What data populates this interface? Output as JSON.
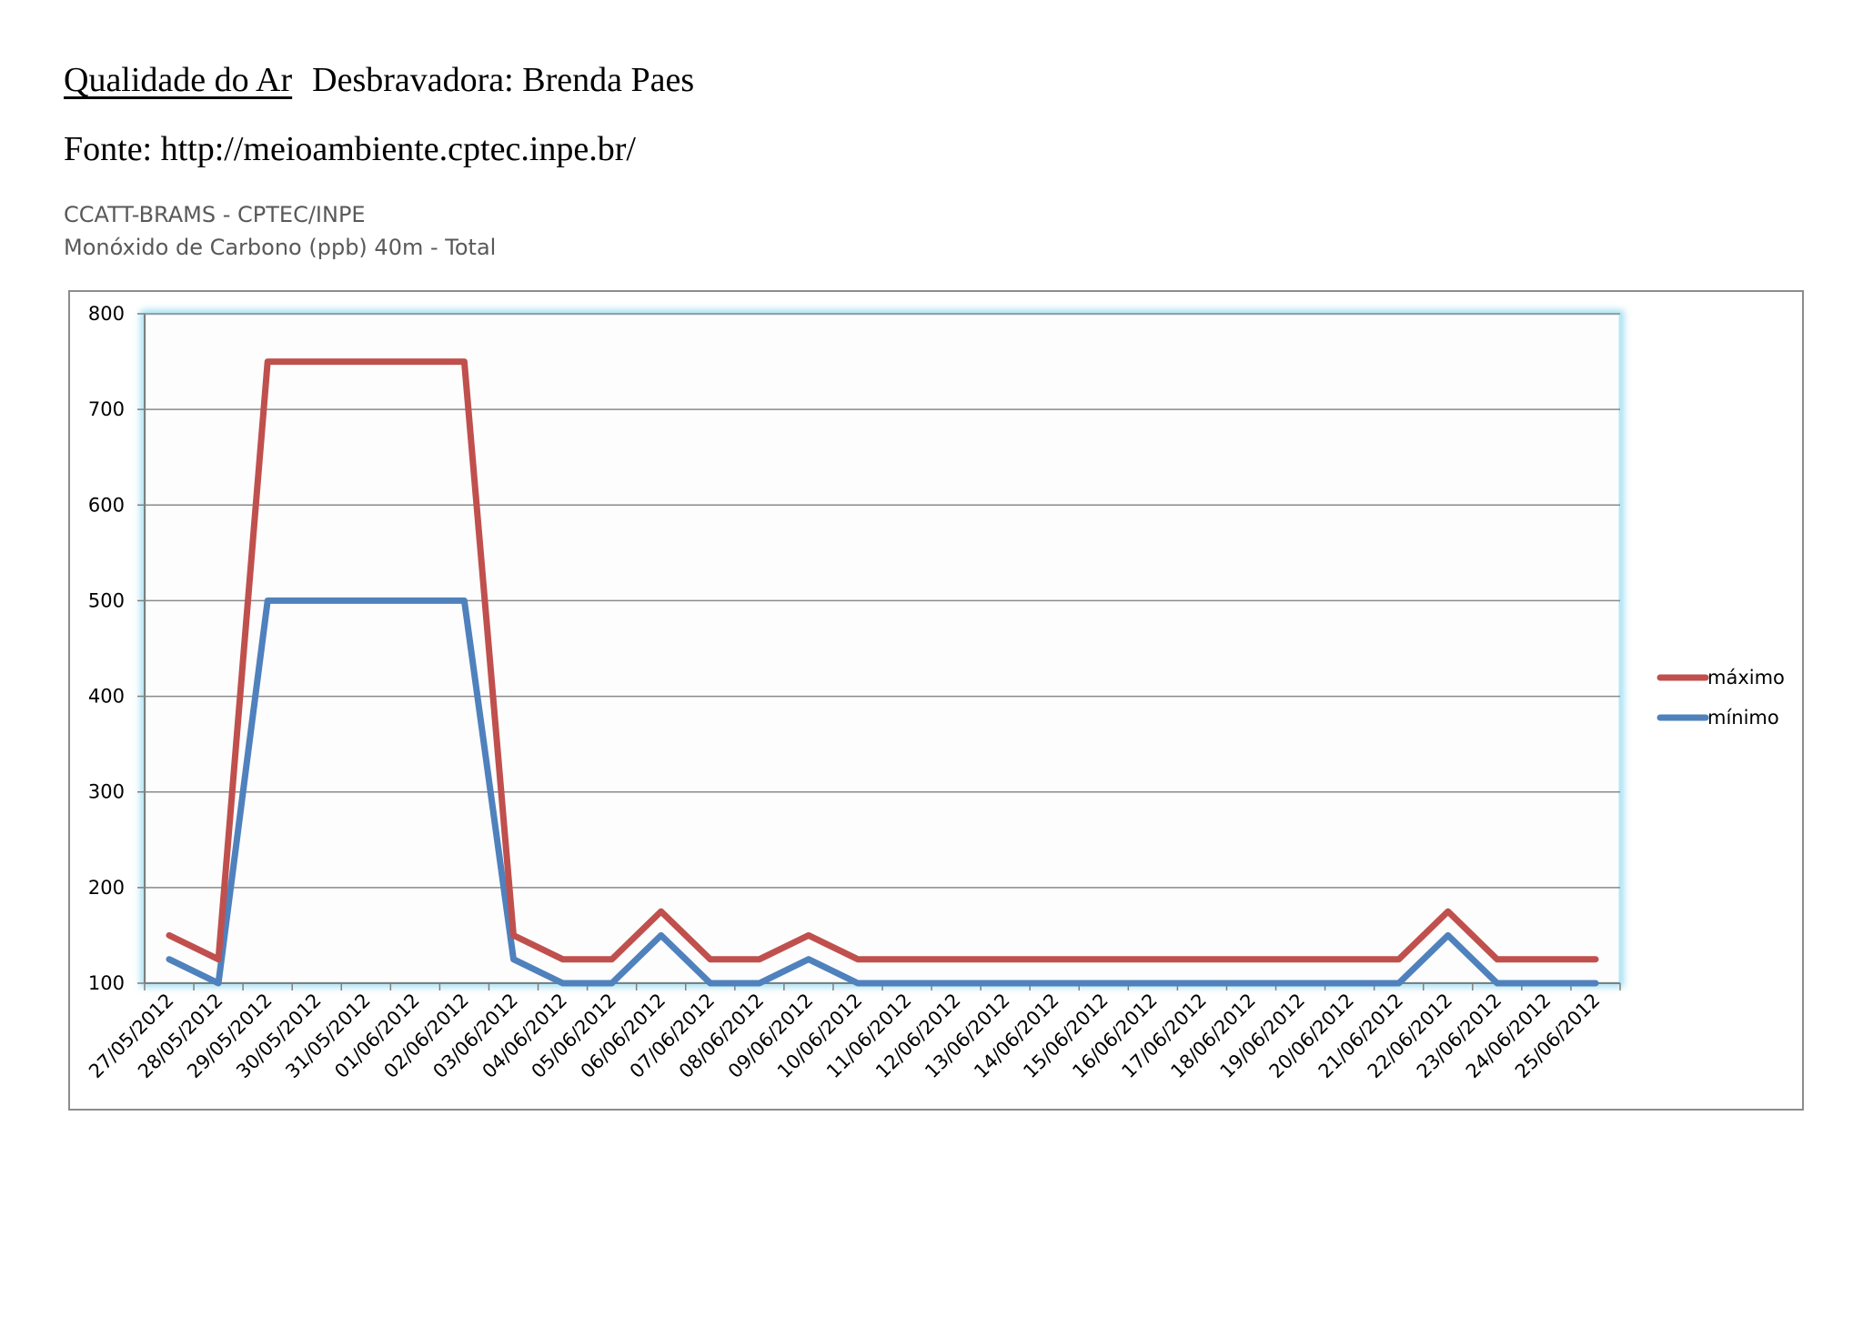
{
  "document": {
    "title": "Qualidade do Ar",
    "author": "Desbravadora: Brenda Paes",
    "source": "Fonte: http://meioambiente.cptec.inpe.br/"
  },
  "chart_caption": {
    "line1": "CCATT-BRAMS - CPTEC/INPE",
    "line2": "Monóxido de Carbono (ppb) 40m - Total"
  },
  "chart_data": {
    "type": "line",
    "title": "",
    "xlabel": "",
    "ylabel": "",
    "ylim": [
      100,
      800
    ],
    "yticks": [
      100,
      200,
      300,
      400,
      500,
      600,
      700,
      800
    ],
    "grid": true,
    "legend_position": "right",
    "categories": [
      "27/05/2012",
      "28/05/2012",
      "29/05/2012",
      "30/05/2012",
      "31/05/2012",
      "01/06/2012",
      "02/06/2012",
      "03/06/2012",
      "04/06/2012",
      "05/06/2012",
      "06/06/2012",
      "07/06/2012",
      "08/06/2012",
      "09/06/2012",
      "10/06/2012",
      "11/06/2012",
      "12/06/2012",
      "13/06/2012",
      "14/06/2012",
      "15/06/2012",
      "16/06/2012",
      "17/06/2012",
      "18/06/2012",
      "19/06/2012",
      "20/06/2012",
      "21/06/2012",
      "22/06/2012",
      "23/06/2012",
      "24/06/2012",
      "25/06/2012"
    ],
    "series": [
      {
        "name": "máximo",
        "color": "#c0504d",
        "values": [
          150,
          125,
          750,
          750,
          750,
          750,
          750,
          150,
          125,
          125,
          175,
          125,
          125,
          150,
          125,
          125,
          125,
          125,
          125,
          125,
          125,
          125,
          125,
          125,
          125,
          125,
          175,
          125,
          125,
          125
        ]
      },
      {
        "name": "mínimo",
        "color": "#4f81bd",
        "values": [
          125,
          100,
          500,
          500,
          500,
          500,
          500,
          125,
          100,
          100,
          150,
          100,
          100,
          125,
          100,
          100,
          100,
          100,
          100,
          100,
          100,
          100,
          100,
          100,
          100,
          100,
          150,
          100,
          100,
          100
        ]
      }
    ]
  }
}
